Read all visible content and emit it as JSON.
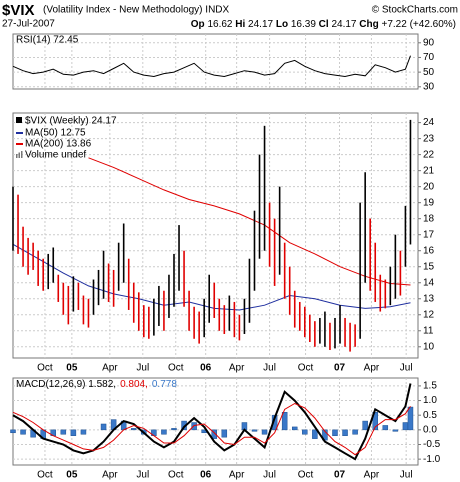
{
  "header": {
    "symbol": "$VIX",
    "name": "(Volatility Index - New Methodology) INDX",
    "credit": "© StockCharts.com",
    "date": "27-Jul-2007",
    "quote": [
      [
        "Op",
        "16.62"
      ],
      [
        "Hi",
        "24.17"
      ],
      [
        "Lo",
        "16.39"
      ],
      [
        "Cl",
        "24.17"
      ],
      [
        "Chg",
        "+7.22 (+42.60%)"
      ]
    ]
  },
  "chart_data": [
    {
      "type": "line",
      "label": "RSI(14) 72.45",
      "x": [
        0,
        4,
        8,
        12,
        16,
        20,
        24,
        28,
        32,
        36,
        40,
        44,
        48,
        52,
        56,
        60,
        64,
        68,
        72,
        76,
        80,
        84,
        88,
        92,
        96,
        100,
        104,
        108,
        112,
        116,
        120,
        124,
        128,
        132,
        136,
        140,
        144,
        148,
        152,
        156,
        158
      ],
      "series": [
        {
          "color": "#000000",
          "values": [
            58,
            52,
            48,
            50,
            54,
            47,
            46,
            50,
            52,
            48,
            55,
            62,
            50,
            46,
            44,
            48,
            50,
            56,
            62,
            50,
            46,
            44,
            48,
            52,
            50,
            46,
            48,
            62,
            66,
            58,
            52,
            48,
            46,
            44,
            47,
            45,
            60,
            56,
            50,
            54,
            72.45
          ]
        }
      ],
      "xlim": [
        0,
        161
      ],
      "ylim": [
        27,
        102
      ],
      "yticks": [
        90,
        70,
        50,
        30
      ],
      "grid": true
    },
    {
      "type": "ohlc",
      "legend_title": "$VIX (Weekly) 24.17",
      "color": "#000000",
      "down_color": "#e00000",
      "volume_note": "Volume undef",
      "x": [
        0,
        2,
        4,
        6,
        8,
        10,
        12,
        14,
        16,
        18,
        20,
        22,
        24,
        26,
        28,
        30,
        32,
        34,
        36,
        38,
        40,
        42,
        44,
        46,
        48,
        50,
        52,
        54,
        56,
        58,
        60,
        62,
        64,
        66,
        68,
        70,
        72,
        74,
        76,
        78,
        80,
        82,
        84,
        86,
        88,
        90,
        92,
        94,
        96,
        98,
        100,
        102,
        104,
        106,
        108,
        110,
        112,
        114,
        116,
        118,
        120,
        122,
        124,
        126,
        128,
        130,
        132,
        134,
        136,
        138,
        140,
        142,
        144,
        146,
        148,
        150,
        152,
        154,
        156,
        158
      ],
      "high": [
        20.0,
        19.5,
        17.5,
        16.8,
        16.5,
        16.0,
        15.5,
        15.8,
        16.2,
        14.5,
        14.0,
        13.8,
        14.4,
        14.0,
        13.2,
        13.0,
        14.2,
        14.8,
        16.0,
        15.2,
        14.8,
        16.5,
        17.7,
        15.5,
        14.0,
        13.4,
        12.6,
        12.5,
        13.0,
        13.8,
        13.5,
        14.5,
        15.8,
        17.6,
        16.0,
        13.5,
        12.5,
        12.2,
        13.0,
        14.5,
        14.0,
        13.0,
        12.6,
        13.2,
        12.8,
        12.0,
        13.0,
        15.5,
        18.5,
        22.0,
        23.8,
        19.0,
        18.0,
        20.0,
        16.5,
        15.0,
        13.5,
        12.8,
        12.5,
        12.0,
        11.6,
        11.8,
        12.2,
        11.5,
        11.8,
        12.6,
        11.8,
        11.5,
        11.4,
        19.0,
        20.9,
        18.0,
        16.5,
        14.5,
        14.2,
        15.0,
        17.0,
        16.0,
        18.8,
        24.17
      ],
      "low": [
        16.0,
        15.8,
        15.0,
        14.5,
        14.8,
        13.8,
        13.5,
        13.6,
        14.0,
        12.8,
        12.0,
        11.4,
        12.2,
        12.3,
        11.4,
        11.2,
        12.0,
        12.6,
        13.0,
        12.8,
        12.5,
        13.5,
        14.0,
        12.3,
        11.5,
        11.0,
        10.6,
        10.5,
        10.7,
        11.3,
        11.0,
        11.8,
        12.5,
        13.5,
        12.5,
        11.0,
        10.5,
        10.2,
        10.6,
        11.5,
        11.8,
        11.0,
        10.8,
        11.0,
        10.6,
        10.4,
        10.8,
        11.5,
        13.5,
        15.5,
        16.0,
        15.0,
        13.8,
        14.5,
        13.0,
        12.0,
        11.2,
        11.0,
        10.6,
        10.3,
        10.0,
        10.2,
        10.0,
        9.8,
        9.9,
        10.2,
        10.0,
        9.7,
        10.0,
        10.5,
        14.0,
        13.5,
        12.8,
        12.2,
        12.4,
        12.6,
        13.0,
        13.2,
        15.0,
        16.39
      ],
      "series": [
        {
          "name": "MA(50) 12.75",
          "color": "#1f2f9f",
          "x": [
            0,
            10,
            20,
            30,
            40,
            50,
            60,
            70,
            80,
            90,
            100,
            110,
            120,
            130,
            140,
            150,
            158
          ],
          "values": [
            16.4,
            15.5,
            14.6,
            13.8,
            13.3,
            13.0,
            12.6,
            12.8,
            12.4,
            12.3,
            12.6,
            13.2,
            13.0,
            12.6,
            12.4,
            12.5,
            12.75
          ]
        },
        {
          "name": "MA(200) 13.86",
          "color": "#e00000",
          "x": [
            30,
            40,
            50,
            60,
            70,
            80,
            90,
            100,
            110,
            120,
            130,
            140,
            150,
            158
          ],
          "values": [
            21.8,
            21.2,
            20.5,
            19.8,
            19.2,
            18.8,
            18.3,
            17.6,
            16.5,
            15.8,
            15.0,
            14.4,
            13.95,
            13.86
          ]
        }
      ],
      "xlim": [
        0,
        161
      ],
      "ylim": [
        9.3,
        24.6
      ],
      "yticks": [
        10,
        11,
        12,
        13,
        14,
        15,
        16,
        17,
        18,
        19,
        20,
        21,
        22,
        23,
        24
      ],
      "xticks": [
        {
          "value": 12.7,
          "label": "Oct"
        },
        {
          "value": 23.4,
          "label": "05"
        },
        {
          "value": 38.5,
          "label": "Apr"
        },
        {
          "value": 51.6,
          "label": "Jul"
        },
        {
          "value": 64.7,
          "label": "Oct"
        },
        {
          "value": 76.6,
          "label": "06"
        },
        {
          "value": 88.9,
          "label": "Apr"
        },
        {
          "value": 102,
          "label": "Jul"
        },
        {
          "value": 116.3,
          "label": "Oct"
        },
        {
          "value": 129.8,
          "label": "07"
        },
        {
          "value": 142.5,
          "label": "Apr"
        },
        {
          "value": 156.3,
          "label": "Jul"
        }
      ],
      "grid": true
    },
    {
      "type": "macd",
      "label": "MACD(12,26,9) 1.582,",
      "signal_label": "0.804,",
      "histogram_label": "0.778",
      "x": [
        0,
        4,
        8,
        12,
        16,
        20,
        24,
        28,
        32,
        36,
        40,
        44,
        48,
        52,
        56,
        60,
        64,
        68,
        72,
        76,
        80,
        84,
        88,
        92,
        96,
        100,
        104,
        108,
        112,
        116,
        120,
        124,
        128,
        132,
        136,
        140,
        144,
        148,
        152,
        156,
        158
      ],
      "series": [
        {
          "kind": "histogram",
          "color": "#3a78c8",
          "values": [
            -0.1,
            -0.15,
            -0.25,
            -0.3,
            -0.2,
            -0.15,
            -0.2,
            -0.15,
            0.0,
            0.2,
            0.35,
            0.3,
            0.05,
            -0.15,
            -0.2,
            -0.15,
            0.05,
            0.3,
            0.25,
            -0.1,
            -0.3,
            -0.25,
            0.0,
            0.25,
            -0.05,
            -0.15,
            0.5,
            0.6,
            0.1,
            -0.15,
            -0.3,
            -0.35,
            -0.2,
            -0.2,
            -0.15,
            0.3,
            0.6,
            0.15,
            -0.05,
            0.25,
            0.778
          ]
        },
        {
          "kind": "line",
          "color": "#000000",
          "values": [
            0.5,
            0.3,
            0.0,
            -0.3,
            -0.4,
            -0.5,
            -0.7,
            -0.8,
            -0.7,
            -0.4,
            0.0,
            0.3,
            0.2,
            -0.1,
            -0.4,
            -0.6,
            -0.4,
            0.1,
            0.4,
            0.1,
            -0.4,
            -0.7,
            -0.5,
            0.0,
            -0.3,
            -0.6,
            0.4,
            1.3,
            1.0,
            0.6,
            0.1,
            -0.4,
            -0.6,
            -0.8,
            -1.0,
            -0.3,
            0.7,
            0.5,
            0.3,
            0.8,
            1.582
          ]
        },
        {
          "kind": "line",
          "color": "#e00000",
          "values": [
            0.6,
            0.45,
            0.25,
            0.0,
            -0.2,
            -0.35,
            -0.5,
            -0.65,
            -0.7,
            -0.6,
            -0.35,
            0.0,
            0.15,
            0.05,
            -0.2,
            -0.45,
            -0.45,
            -0.2,
            0.15,
            0.2,
            -0.1,
            -0.45,
            -0.5,
            -0.25,
            -0.25,
            -0.45,
            -0.1,
            0.7,
            0.9,
            0.75,
            0.4,
            -0.05,
            -0.4,
            -0.6,
            -0.85,
            -0.6,
            0.1,
            0.35,
            0.35,
            0.55,
            0.804
          ]
        }
      ],
      "xlim": [
        0,
        161
      ],
      "ylim": [
        -1.2,
        1.77
      ],
      "yticks": [
        1.5,
        {
          "value": 1,
          "label": "1.0"
        },
        0.5,
        {
          "value": 0,
          "label": "0.0"
        },
        -0.5,
        {
          "value": -1,
          "label": "-1.0"
        }
      ],
      "xticks": [
        {
          "value": 12.7,
          "label": "Oct"
        },
        {
          "value": 23.4,
          "label": "05"
        },
        {
          "value": 38.5,
          "label": "Apr"
        },
        {
          "value": 51.6,
          "label": "Jul"
        },
        {
          "value": 64.7,
          "label": "Oct"
        },
        {
          "value": 76.6,
          "label": "06"
        },
        {
          "value": 88.9,
          "label": "Apr"
        },
        {
          "value": 102,
          "label": "Jul"
        },
        {
          "value": 116.3,
          "label": "Oct"
        },
        {
          "value": 129.8,
          "label": "07"
        },
        {
          "value": 142.5,
          "label": "Apr"
        },
        {
          "value": 156.3,
          "label": "Jul"
        }
      ],
      "grid": true
    }
  ]
}
